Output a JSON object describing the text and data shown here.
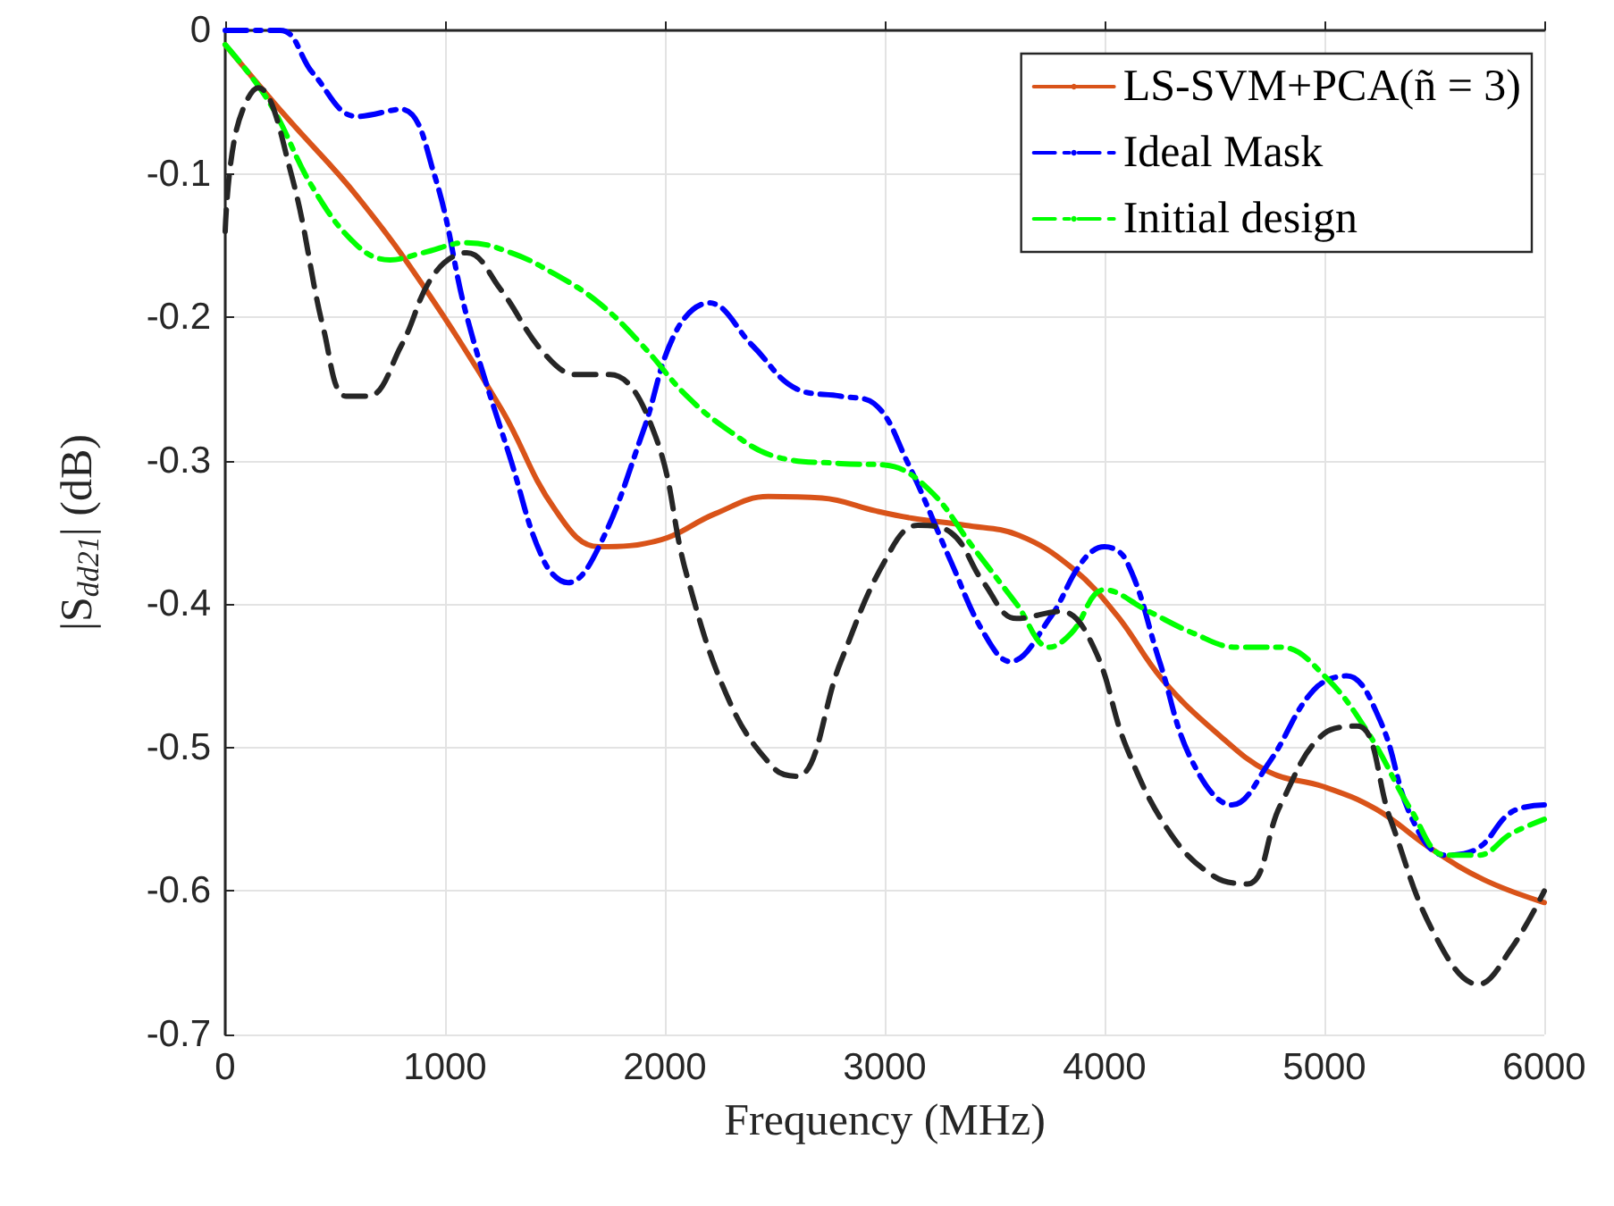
{
  "chart_data": {
    "type": "line",
    "xlabel": "Frequency (MHz)",
    "ylabel": "|S$_{dd21}$| (dB)",
    "xlim": [
      0,
      6000
    ],
    "xticks": [
      0,
      1000,
      2000,
      3000,
      4000,
      5000,
      6000
    ],
    "ylim": [
      -0.7,
      0
    ],
    "yticks": [
      -0.7,
      -0.6,
      -0.5,
      -0.4,
      -0.3,
      -0.2,
      -0.1,
      0
    ],
    "grid": true,
    "legend": "top right",
    "marker": "none",
    "series": [
      {
        "name": "LS-SVM+PCA(ñ = 3)",
        "color": "#d95319",
        "line_style": "solid",
        "x": [
          0,
          276,
          602,
          927,
          1260,
          1500,
          1700,
          1984,
          2228,
          2470,
          2715,
          2959,
          3122,
          3366,
          3610,
          3854,
          4057,
          4260,
          4504,
          4748,
          4992,
          5236,
          5480,
          5724,
          6000
        ],
        "values": [
          -0.01,
          -0.06,
          -0.116,
          -0.184,
          -0.265,
          -0.334,
          -0.36,
          -0.355,
          -0.337,
          -0.325,
          -0.326,
          -0.335,
          -0.34,
          -0.345,
          -0.352,
          -0.375,
          -0.408,
          -0.452,
          -0.489,
          -0.517,
          -0.527,
          -0.543,
          -0.57,
          -0.592,
          -0.608
        ]
      },
      {
        "name": "Ideal Mask",
        "color": "#0000ff",
        "line_style": "dashdot",
        "x": [
          0,
          250,
          400,
          600,
          800,
          950,
          1100,
          1300,
          1450,
          1560,
          1700,
          1900,
          2050,
          2200,
          2400,
          2600,
          2800,
          2950,
          3100,
          3300,
          3450,
          3570,
          3750,
          3900,
          4000,
          4100,
          4250,
          4400,
          4580,
          4750,
          4950,
          5100,
          5250,
          5400,
          5550,
          5700,
          5850,
          6000
        ],
        "values": [
          0,
          0,
          -0.03,
          -0.06,
          -0.055,
          -0.1,
          -0.2,
          -0.3,
          -0.37,
          -0.385,
          -0.36,
          -0.28,
          -0.21,
          -0.19,
          -0.22,
          -0.25,
          -0.255,
          -0.26,
          -0.3,
          -0.37,
          -0.42,
          -0.44,
          -0.41,
          -0.37,
          -0.36,
          -0.37,
          -0.44,
          -0.51,
          -0.54,
          -0.51,
          -0.46,
          -0.45,
          -0.48,
          -0.55,
          -0.575,
          -0.57,
          -0.545,
          -0.54
        ]
      },
      {
        "name": "Initial design",
        "color": "#00ff00",
        "line_style": "dashdot",
        "x": [
          0,
          200,
          400,
          600,
          750,
          900,
          1100,
          1300,
          1500,
          1700,
          1900,
          2100,
          2300,
          2500,
          2800,
          3000,
          3200,
          3400,
          3600,
          3750,
          3850,
          4000,
          4200,
          4400,
          4600,
          4800,
          5000,
          5200,
          5400,
          5550,
          5700,
          5850,
          6000
        ],
        "values": [
          -0.01,
          -0.05,
          -0.11,
          -0.15,
          -0.16,
          -0.155,
          -0.148,
          -0.155,
          -0.17,
          -0.19,
          -0.22,
          -0.255,
          -0.28,
          -0.297,
          -0.302,
          -0.303,
          -0.32,
          -0.36,
          -0.4,
          -0.43,
          -0.42,
          -0.39,
          -0.405,
          -0.42,
          -0.43,
          -0.43,
          -0.45,
          -0.49,
          -0.545,
          -0.575,
          -0.575,
          -0.56,
          -0.55
        ]
      },
      {
        "color": "#262626",
        "line_style": "dashed",
        "x": [
          0,
          50,
          150,
          300,
          450,
          550,
          650,
          800,
          950,
          1100,
          1250,
          1450,
          1600,
          1750,
          1950,
          2100,
          2300,
          2500,
          2600,
          2800,
          3000,
          3150,
          3300,
          3450,
          3600,
          3800,
          3950,
          4100,
          4300,
          4500,
          4650,
          4800,
          5000,
          5150,
          5300,
          5500,
          5700,
          5850,
          6000
        ],
        "values": [
          -0.14,
          -0.07,
          -0.04,
          -0.1,
          -0.21,
          -0.255,
          -0.255,
          -0.22,
          -0.17,
          -0.155,
          -0.18,
          -0.225,
          -0.24,
          -0.24,
          -0.28,
          -0.38,
          -0.47,
          -0.515,
          -0.52,
          -0.44,
          -0.37,
          -0.345,
          -0.35,
          -0.385,
          -0.41,
          -0.405,
          -0.43,
          -0.5,
          -0.56,
          -0.59,
          -0.595,
          -0.54,
          -0.49,
          -0.485,
          -0.55,
          -0.63,
          -0.665,
          -0.64,
          -0.6
        ]
      }
    ]
  }
}
